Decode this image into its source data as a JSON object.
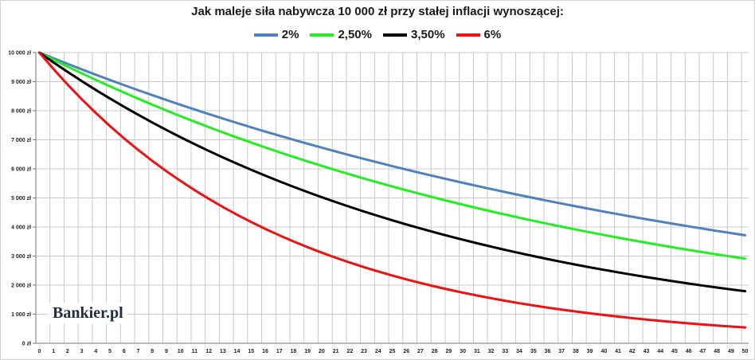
{
  "chart_data": {
    "type": "line",
    "title": "Jak maleje siła nabywcza 10 000 zł przy stałej inflacji wynoszącej:",
    "xlabel": "",
    "ylabel": "",
    "x": [
      0,
      1,
      2,
      3,
      4,
      5,
      6,
      7,
      8,
      9,
      10,
      11,
      12,
      13,
      14,
      15,
      16,
      17,
      18,
      19,
      20,
      21,
      22,
      23,
      24,
      25,
      26,
      27,
      28,
      29,
      30,
      31,
      32,
      33,
      34,
      35,
      36,
      37,
      38,
      39,
      40,
      41,
      42,
      43,
      44,
      45,
      46,
      47,
      48,
      49,
      50
    ],
    "ylim": [
      0,
      10000
    ],
    "y_ticks": [
      "0 zł",
      "1 000 zł",
      "2 000 zł",
      "3 000 zł",
      "4 000 zł",
      "5 000 zł",
      "6 000 zł",
      "7 000 zł",
      "8 000 zł",
      "9 000 zł",
      "10 000 zł"
    ],
    "grid": true,
    "legend_position": "top",
    "series": [
      {
        "name": "2%",
        "color": "#4f81bd",
        "rate": 0.02,
        "values": [
          10000,
          9804,
          9612,
          9423,
          9238,
          9057,
          8880,
          8706,
          8535,
          8368,
          8203,
          8043,
          7885,
          7730,
          7579,
          7430,
          7284,
          7142,
          7002,
          6864,
          6730,
          6598,
          6468,
          6342,
          6217,
          6095,
          5976,
          5859,
          5744,
          5631,
          5521,
          5412,
          5306,
          5202,
          5100,
          5000,
          4902,
          4806,
          4712,
          4619,
          4529,
          4440,
          4353,
          4268,
          4184,
          4102,
          4022,
          3943,
          3865,
          3790,
          3715
        ]
      },
      {
        "name": "2,50%",
        "color": "#22ee22",
        "rate": 0.025,
        "values": [
          10000,
          9756,
          9518,
          9286,
          9060,
          8839,
          8623,
          8413,
          8207,
          8007,
          7812,
          7621,
          7436,
          7254,
          7077,
          6905,
          6736,
          6572,
          6412,
          6255,
          6103,
          5954,
          5809,
          5667,
          5529,
          5394,
          5262,
          5134,
          5009,
          4887,
          4767,
          4651,
          4538,
          4427,
          4319,
          4214,
          4111,
          4011,
          3913,
          3817,
          3724,
          3633,
          3545,
          3458,
          3374,
          3292,
          3211,
          3133,
          3057,
          2982,
          2909
        ]
      },
      {
        "name": "3,50%",
        "color": "#000000",
        "rate": 0.035,
        "values": [
          10000,
          9662,
          9335,
          9019,
          8714,
          8420,
          8135,
          7860,
          7594,
          7337,
          7089,
          6849,
          6618,
          6394,
          6178,
          5969,
          5767,
          5572,
          5384,
          5202,
          5026,
          4856,
          4692,
          4533,
          4380,
          4231,
          4088,
          3950,
          3817,
          3687,
          3563,
          3442,
          3326,
          3213,
          3105,
          3000,
          2898,
          2800,
          2706,
          2614,
          2526,
          2440,
          2358,
          2278,
          2201,
          2127,
          2055,
          1985,
          1918,
          1853,
          1791
        ]
      },
      {
        "name": "6%",
        "color": "#ee1111",
        "rate": 0.06,
        "values": [
          10000,
          9434,
          8900,
          8396,
          7921,
          7473,
          7050,
          6651,
          6274,
          5919,
          5584,
          5268,
          4970,
          4688,
          4423,
          4173,
          3936,
          3714,
          3503,
          3305,
          3118,
          2942,
          2775,
          2618,
          2470,
          2330,
          2198,
          2074,
          1956,
          1846,
          1741,
          1643,
          1550,
          1462,
          1379,
          1301,
          1227,
          1158,
          1092,
          1031,
          972,
          917,
          865,
          816,
          770,
          727,
          685,
          647,
          610,
          575,
          543
        ]
      }
    ]
  },
  "watermark": "Bankier.pl"
}
